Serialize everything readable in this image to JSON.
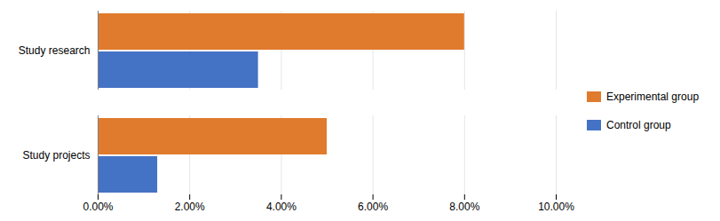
{
  "chart_data": {
    "type": "bar",
    "orientation": "horizontal",
    "categories": [
      "Study research",
      "Study projects"
    ],
    "series": [
      {
        "name": "Experimental group",
        "color": "#E07B2E",
        "values": [
          0.08,
          0.05
        ]
      },
      {
        "name": "Control group",
        "color": "#4472C4",
        "values": [
          0.035,
          0.013
        ]
      }
    ],
    "xlim": [
      0,
      0.1
    ],
    "xticks": [
      {
        "value": 0.0,
        "label": "0.00%"
      },
      {
        "value": 0.02,
        "label": "2.00%"
      },
      {
        "value": 0.04,
        "label": "4.00%"
      },
      {
        "value": 0.06,
        "label": "6.00%"
      },
      {
        "value": 0.08,
        "label": "8.00%"
      },
      {
        "value": 0.1,
        "label": "10.00%"
      }
    ],
    "grid": true,
    "legend": "right"
  }
}
